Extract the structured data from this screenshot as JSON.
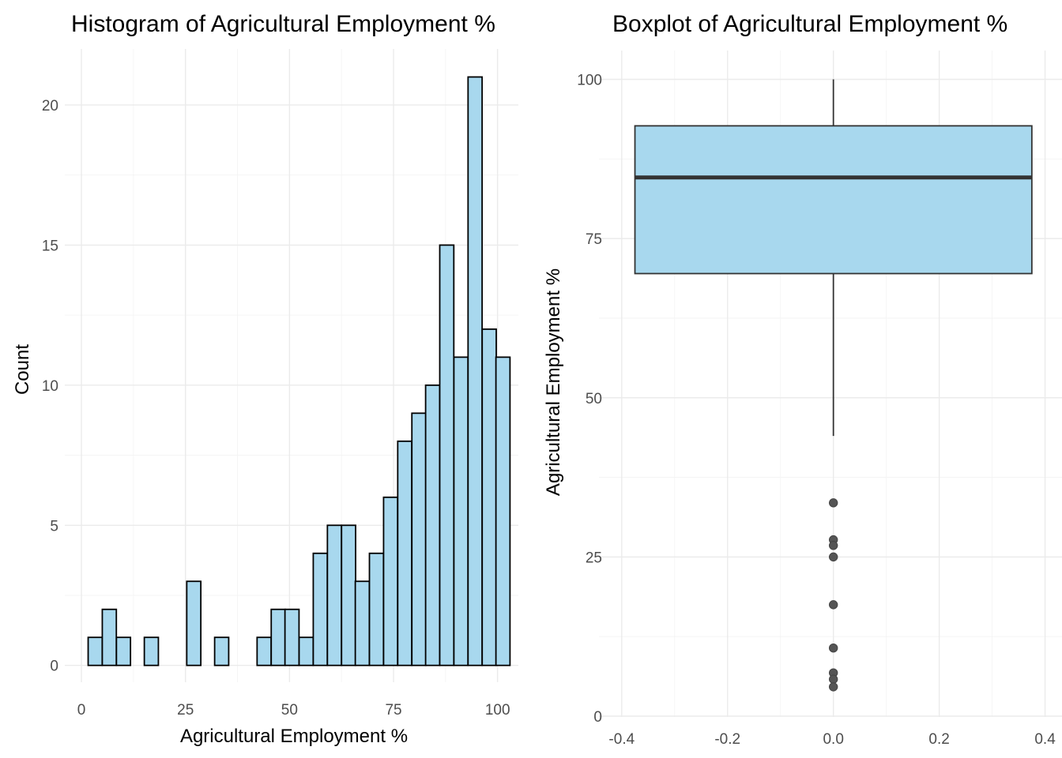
{
  "colors": {
    "fill": "#a8d8ee",
    "bar_outline": "#000000",
    "box_outline": "#333333",
    "outlier": "#555555"
  },
  "chart_data": [
    {
      "type": "bar",
      "title": "Histogram of Agricultural Employment %",
      "xlabel": "Agricultural Employment %",
      "ylabel": "Count",
      "xlim": [
        -4,
        105
      ],
      "ylim": [
        -0.6,
        22
      ],
      "x_ticks": [
        0,
        25,
        50,
        75,
        100
      ],
      "y_ticks": [
        0,
        5,
        10,
        15,
        20
      ],
      "bin_width": 3.38,
      "bins": [
        {
          "x": 3.3,
          "count": 1
        },
        {
          "x": 6.7,
          "count": 2
        },
        {
          "x": 10.1,
          "count": 1
        },
        {
          "x": 13.4,
          "count": 0
        },
        {
          "x": 16.8,
          "count": 1
        },
        {
          "x": 20.2,
          "count": 0
        },
        {
          "x": 23.6,
          "count": 0
        },
        {
          "x": 27.0,
          "count": 3
        },
        {
          "x": 30.4,
          "count": 0
        },
        {
          "x": 33.7,
          "count": 1
        },
        {
          "x": 37.1,
          "count": 0
        },
        {
          "x": 40.5,
          "count": 0
        },
        {
          "x": 43.9,
          "count": 1
        },
        {
          "x": 47.3,
          "count": 2
        },
        {
          "x": 50.6,
          "count": 2
        },
        {
          "x": 54.0,
          "count": 1
        },
        {
          "x": 57.4,
          "count": 4
        },
        {
          "x": 60.8,
          "count": 5
        },
        {
          "x": 64.2,
          "count": 5
        },
        {
          "x": 67.5,
          "count": 3
        },
        {
          "x": 70.9,
          "count": 4
        },
        {
          "x": 74.3,
          "count": 6
        },
        {
          "x": 77.7,
          "count": 8
        },
        {
          "x": 81.1,
          "count": 9
        },
        {
          "x": 84.4,
          "count": 10
        },
        {
          "x": 87.8,
          "count": 15
        },
        {
          "x": 91.2,
          "count": 11
        },
        {
          "x": 94.6,
          "count": 21
        },
        {
          "x": 98.0,
          "count": 12
        },
        {
          "x": 101.3,
          "count": 11
        }
      ],
      "grid": true
    },
    {
      "type": "box",
      "title": "Boxplot of Agricultural Employment %",
      "xlabel": "",
      "ylabel": "Agricultural Employment %",
      "xlim": [
        -0.4,
        0.4
      ],
      "ylim": [
        0,
        100
      ],
      "x_ticks": [
        -0.4,
        -0.2,
        0.0,
        0.2,
        0.4
      ],
      "x_tick_labels": [
        "-0.4",
        "-0.2",
        "0.0",
        "0.2",
        "0.4"
      ],
      "y_ticks": [
        0,
        25,
        50,
        75,
        100
      ],
      "box": {
        "x_center": 0,
        "half_width": 0.375,
        "q1": 69.5,
        "median": 84.6,
        "q3": 92.7,
        "whisker_low": 44.0,
        "whisker_high": 100.0
      },
      "outliers": [
        33.5,
        27.7,
        26.8,
        25.0,
        17.5,
        10.7,
        6.8,
        5.8,
        4.6
      ],
      "grid": true
    }
  ]
}
